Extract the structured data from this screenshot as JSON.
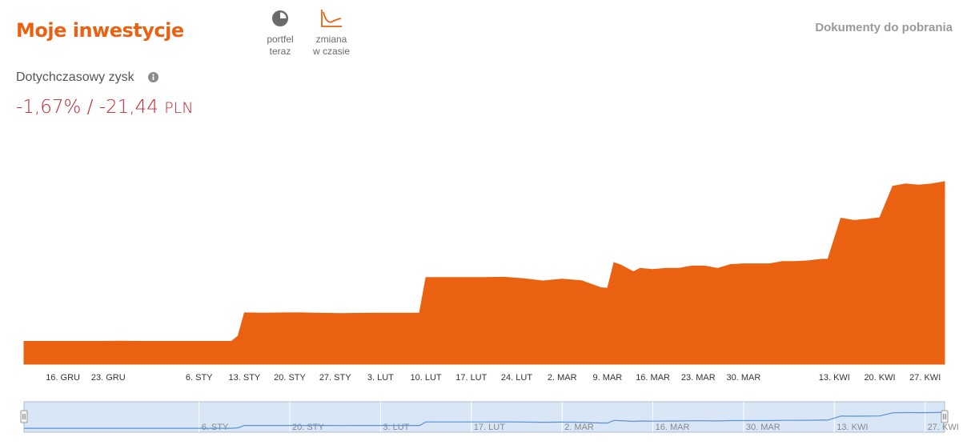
{
  "header": {
    "title": "Moje inwestycje",
    "downloads_link": "Dokumenty do pobrania"
  },
  "view_toggles": [
    {
      "label": "portfel\nteraz",
      "icon": "pie-chart-icon"
    },
    {
      "label": "zmiana\nw czasie",
      "icon": "line-chart-icon"
    }
  ],
  "profit": {
    "label": "Dotychczasowy zysk",
    "value": "-1,67% / -21,44",
    "currency": "PLN"
  },
  "colors": {
    "accent": "#ea6211",
    "negative": "#c0262d",
    "navigator_fill": "#d8e6f6",
    "navigator_line": "#5b8fd6"
  },
  "chart_data": {
    "type": "area",
    "title": "",
    "xlabel": "",
    "ylabel": "",
    "x": [
      "2019-12-10",
      "2019-12-13",
      "2019-12-16",
      "2019-12-19",
      "2019-12-22",
      "2019-12-25",
      "2019-12-28",
      "2019-12-31",
      "2020-01-03",
      "2020-01-06",
      "2020-01-09",
      "2020-01-11",
      "2020-01-12",
      "2020-01-13",
      "2020-01-16",
      "2020-01-19",
      "2020-01-22",
      "2020-01-25",
      "2020-01-28",
      "2020-01-31",
      "2020-02-03",
      "2020-02-06",
      "2020-02-09",
      "2020-02-10",
      "2020-02-13",
      "2020-02-16",
      "2020-02-19",
      "2020-02-22",
      "2020-02-25",
      "2020-02-28",
      "2020-03-02",
      "2020-03-05",
      "2020-03-08",
      "2020-03-09",
      "2020-03-10",
      "2020-03-11",
      "2020-03-13",
      "2020-03-14",
      "2020-03-16",
      "2020-03-18",
      "2020-03-20",
      "2020-03-22",
      "2020-03-24",
      "2020-03-26",
      "2020-03-28",
      "2020-03-30",
      "2020-04-01",
      "2020-04-03",
      "2020-04-05",
      "2020-04-07",
      "2020-04-09",
      "2020-04-11",
      "2020-04-12",
      "2020-04-14",
      "2020-04-16",
      "2020-04-18",
      "2020-04-20",
      "2020-04-22",
      "2020-04-24",
      "2020-04-26",
      "2020-04-28",
      "2020-04-30"
    ],
    "values": [
      10,
      10,
      10,
      10,
      10,
      10.1,
      10,
      10,
      10,
      10,
      10,
      10,
      12.3,
      22.5,
      22.4,
      22.5,
      22.5,
      22.3,
      22.2,
      22.3,
      22.4,
      22.4,
      22.4,
      38,
      38,
      38,
      38,
      38.1,
      37.5,
      36.5,
      37.3,
      36.6,
      33.5,
      33.3,
      44.5,
      43.5,
      40.5,
      42,
      41.5,
      42,
      42,
      43,
      43,
      42,
      43.7,
      44,
      44,
      44,
      45,
      45,
      45.3,
      46,
      46,
      64,
      63,
      63.5,
      64.2,
      78,
      79,
      78.5,
      79,
      80
    ],
    "xticks": [
      "16. GRU",
      "23. GRU",
      "6. STY",
      "13. STY",
      "20. STY",
      "27. STY",
      "3. LUT",
      "10. LUT",
      "17. LUT",
      "24. LUT",
      "2. MAR",
      "9. MAR",
      "16. MAR",
      "23. MAR",
      "30. MAR",
      "13. KWI",
      "20. KWI",
      "27. KWI"
    ],
    "navigator_ticks": [
      "6. STY",
      "20. STY",
      "3. LUT",
      "17. LUT",
      "2. MAR",
      "16. MAR",
      "30. MAR",
      "13. KWI",
      "27. KWI"
    ],
    "grid": false,
    "legend": "none"
  }
}
